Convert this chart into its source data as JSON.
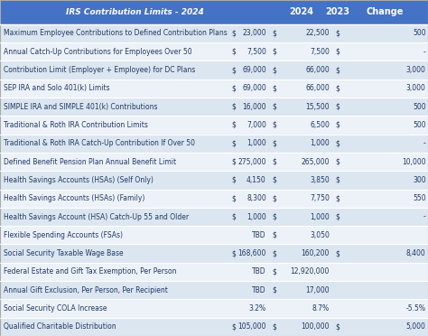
{
  "title": "IRS Contribution Limits - 2024",
  "header_bg": "#4472c4",
  "header_text_color": "#ffffff",
  "col_headers": [
    "IRS Contribution Limits - 2024",
    "2024",
    "2023",
    "Change"
  ],
  "rows": [
    [
      "Maximum Employee Contributions to Defined Contribution Plans",
      "$",
      "23,000",
      "$",
      "22,500",
      "$",
      "500"
    ],
    [
      "Annual Catch-Up Contributions for Employees Over 50",
      "$",
      "7,500",
      "$",
      "7,500",
      "$",
      "-"
    ],
    [
      "Contribution Limit (Employer + Employee) for DC Plans",
      "$",
      "69,000",
      "$",
      "66,000",
      "$",
      "3,000"
    ],
    [
      "SEP IRA and Solo 401(k) Limits",
      "$",
      "69,000",
      "$",
      "66,000",
      "$",
      "3,000"
    ],
    [
      "SIMPLE IRA and SIMPLE 401(k) Contributions",
      "$",
      "16,000",
      "$",
      "15,500",
      "$",
      "500"
    ],
    [
      "Traditional & Roth IRA Contribution Limits",
      "$",
      "7,000",
      "$",
      "6,500",
      "$",
      "500"
    ],
    [
      "Traditional & Roth IRA Catch-Up Contribution If Over 50",
      "$",
      "1,000",
      "$",
      "1,000",
      "$",
      "-"
    ],
    [
      "Defined Benefit Pension Plan Annual Benefit Limit",
      "$",
      "275,000",
      "$",
      "265,000",
      "$",
      "10,000"
    ],
    [
      "Health Savings Accounts (HSAs) (Self Only)",
      "$",
      "4,150",
      "$",
      "3,850",
      "$",
      "300"
    ],
    [
      "Health Savings Accounts (HSAs) (Family)",
      "$",
      "8,300",
      "$",
      "7,750",
      "$",
      "550"
    ],
    [
      "Health Savings Account (HSA) Catch-Up 55 and Older",
      "$",
      "1,000",
      "$",
      "1,000",
      "$",
      "-"
    ],
    [
      "Flexible Spending Accounts (FSAs)",
      "",
      "TBD",
      "$",
      "3,050",
      "",
      ""
    ],
    [
      "Social Security Taxable Wage Base",
      "$",
      "168,600",
      "$",
      "160,200",
      "$",
      "8,400"
    ],
    [
      "Federal Estate and Gift Tax Exemption, Per Person",
      "",
      "TBD",
      "$",
      "12,920,000",
      "",
      ""
    ],
    [
      "Annual Gift Exclusion, Per Person, Per Recipient",
      "",
      "TBD",
      "$",
      "17,000",
      "",
      ""
    ],
    [
      "Social Security COLA Increase",
      "",
      "3.2%",
      "",
      "8.7%",
      "",
      "-5.5%"
    ],
    [
      "Qualified Charitable Distribution",
      "$",
      "105,000",
      "$",
      "100,000",
      "$",
      "5,000"
    ]
  ],
  "row_bg_even": "#dce6f1",
  "row_bg_odd": "#edf2f9",
  "text_color": "#1f3864",
  "grid_color": "#ffffff",
  "figsize": [
    4.74,
    3.72
  ],
  "dpi": 100
}
